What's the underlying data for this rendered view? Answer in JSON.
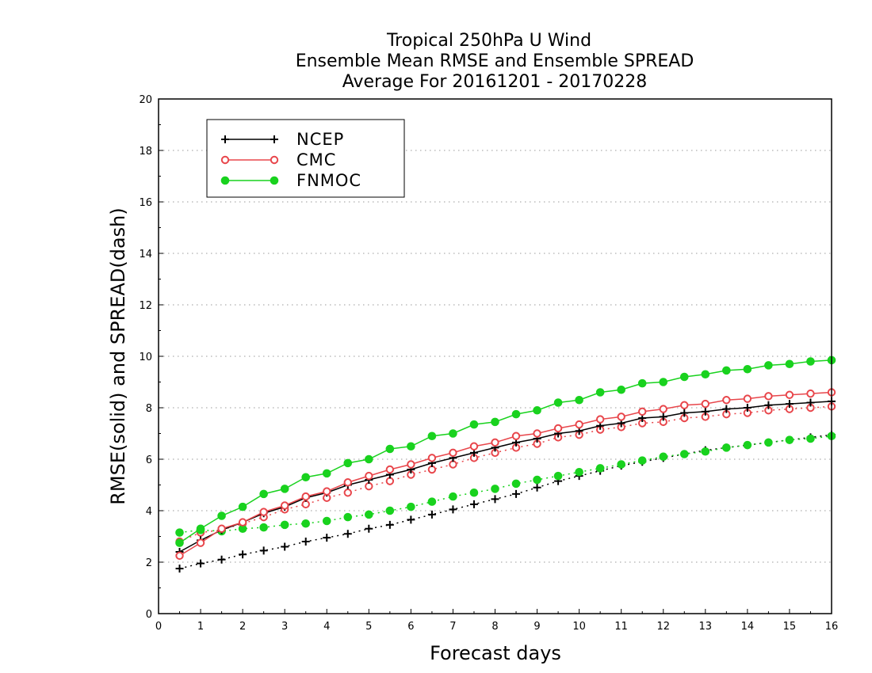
{
  "chart_data": {
    "type": "line",
    "title": [
      "Tropical 250hPa U Wind",
      "Ensemble Mean RMSE and Ensemble SPREAD",
      "Average For 20161201 - 20170228"
    ],
    "xlabel": "Forecast days",
    "ylabel": "RMSE(solid) and SPREAD(dash)",
    "xlim": [
      0,
      16
    ],
    "ylim": [
      0,
      20
    ],
    "x_ticks": [
      "0",
      "1",
      "2",
      "3",
      "4",
      "5",
      "6",
      "7",
      "8",
      "9",
      "10",
      "11",
      "12",
      "13",
      "14",
      "15",
      "16"
    ],
    "y_ticks": [
      "0",
      "2",
      "4",
      "6",
      "8",
      "10",
      "12",
      "14",
      "16",
      "18",
      "20"
    ],
    "grid": "horizontal dotted",
    "legend_position": "top-left",
    "legend": [
      "NCEP",
      "CMC",
      "FNMOC"
    ],
    "x": [
      0.5,
      1,
      1.5,
      2,
      2.5,
      3,
      3.5,
      4,
      4.5,
      5,
      5.5,
      6,
      6.5,
      7,
      7.5,
      8,
      8.5,
      9,
      9.5,
      10,
      10.5,
      11,
      11.5,
      12,
      12.5,
      13,
      13.5,
      14,
      14.5,
      15,
      15.5,
      16
    ],
    "series": [
      {
        "name": "NCEP",
        "kind": "RMSE",
        "style": "solid",
        "marker": "plus",
        "color": "#000000",
        "values": [
          2.4,
          2.85,
          3.25,
          3.55,
          3.9,
          4.15,
          4.5,
          4.7,
          5.0,
          5.2,
          5.4,
          5.6,
          5.85,
          6.05,
          6.25,
          6.45,
          6.65,
          6.8,
          7.0,
          7.1,
          7.3,
          7.4,
          7.6,
          7.65,
          7.8,
          7.85,
          7.95,
          8.0,
          8.1,
          8.15,
          8.2,
          8.25
        ]
      },
      {
        "name": "NCEP",
        "kind": "SPREAD",
        "style": "dash",
        "marker": "plus",
        "color": "#000000",
        "values": [
          1.75,
          1.95,
          2.1,
          2.3,
          2.45,
          2.6,
          2.8,
          2.95,
          3.1,
          3.3,
          3.45,
          3.65,
          3.85,
          4.05,
          4.25,
          4.45,
          4.65,
          4.9,
          5.15,
          5.35,
          5.55,
          5.75,
          5.9,
          6.05,
          6.2,
          6.35,
          6.45,
          6.55,
          6.65,
          6.75,
          6.85,
          6.95
        ]
      },
      {
        "name": "CMC",
        "kind": "RMSE",
        "style": "solid",
        "marker": "open-circle",
        "color": "#e8464b",
        "values": [
          2.25,
          2.75,
          3.3,
          3.55,
          3.95,
          4.2,
          4.55,
          4.75,
          5.1,
          5.35,
          5.6,
          5.8,
          6.05,
          6.25,
          6.5,
          6.65,
          6.9,
          7.0,
          7.2,
          7.35,
          7.55,
          7.65,
          7.85,
          7.95,
          8.1,
          8.15,
          8.3,
          8.35,
          8.45,
          8.5,
          8.55,
          8.6
        ]
      },
      {
        "name": "CMC",
        "kind": "SPREAD",
        "style": "dash",
        "marker": "open-circle",
        "color": "#e8464b",
        "values": [
          2.8,
          3.15,
          3.25,
          3.5,
          3.75,
          4.05,
          4.25,
          4.5,
          4.7,
          4.95,
          5.15,
          5.4,
          5.6,
          5.8,
          6.05,
          6.25,
          6.45,
          6.6,
          6.85,
          6.95,
          7.15,
          7.25,
          7.4,
          7.45,
          7.6,
          7.65,
          7.75,
          7.8,
          7.9,
          7.95,
          8.0,
          8.05
        ]
      },
      {
        "name": "FNMOC",
        "kind": "RMSE",
        "style": "solid",
        "marker": "filled-circle",
        "color": "#19d21e",
        "values": [
          2.75,
          3.3,
          3.8,
          4.15,
          4.65,
          4.85,
          5.3,
          5.45,
          5.85,
          6.0,
          6.4,
          6.5,
          6.9,
          7.0,
          7.35,
          7.45,
          7.75,
          7.9,
          8.2,
          8.3,
          8.6,
          8.7,
          8.95,
          9.0,
          9.2,
          9.3,
          9.45,
          9.5,
          9.65,
          9.7,
          9.8,
          9.85
        ]
      },
      {
        "name": "FNMOC",
        "kind": "SPREAD",
        "style": "dash",
        "marker": "filled-circle",
        "color": "#19d21e",
        "values": [
          3.15,
          3.25,
          3.2,
          3.3,
          3.35,
          3.45,
          3.5,
          3.6,
          3.75,
          3.85,
          4.0,
          4.15,
          4.35,
          4.55,
          4.7,
          4.85,
          5.05,
          5.2,
          5.35,
          5.5,
          5.65,
          5.8,
          5.95,
          6.1,
          6.2,
          6.3,
          6.45,
          6.55,
          6.65,
          6.75,
          6.8,
          6.9
        ]
      }
    ]
  }
}
